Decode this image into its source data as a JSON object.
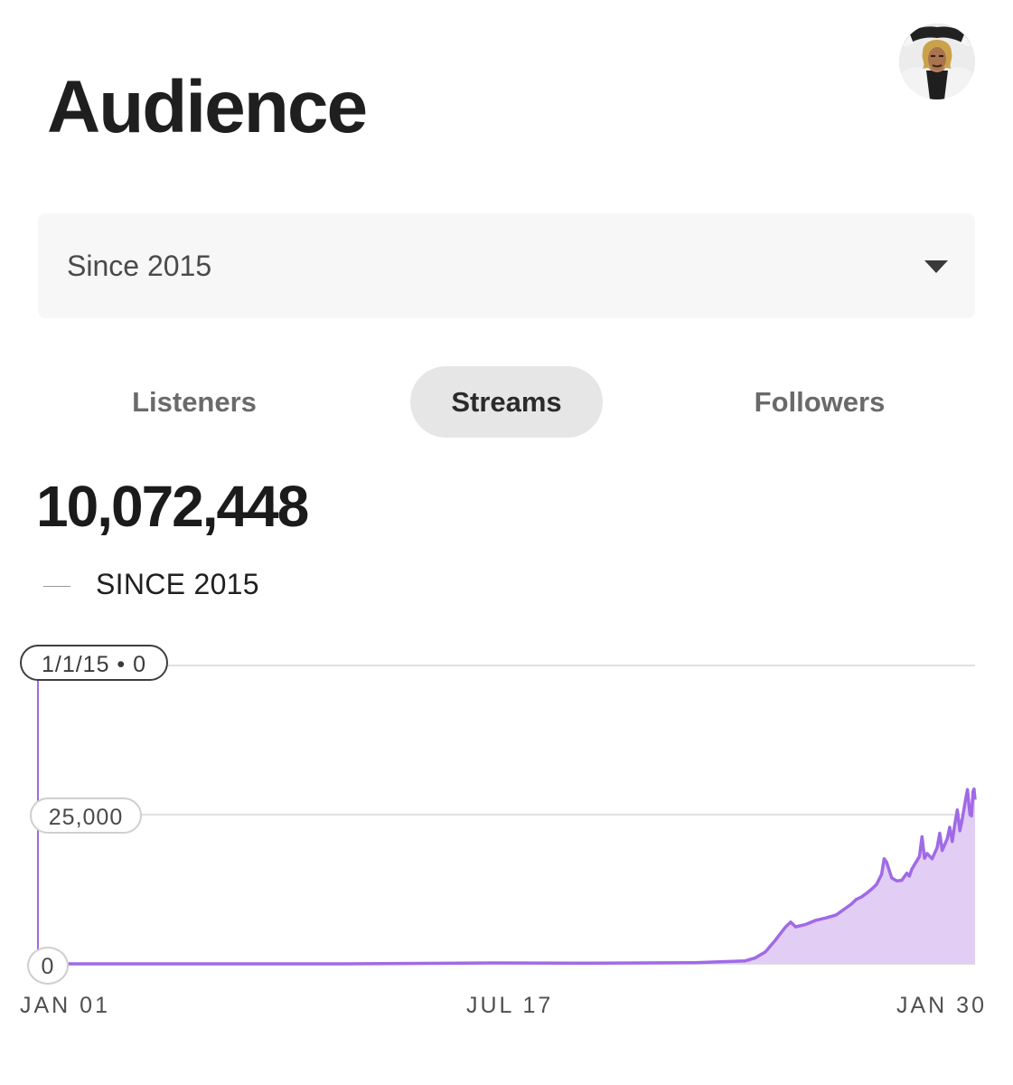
{
  "header": {
    "title": "Audience",
    "avatar_icon": "user-avatar"
  },
  "range_select": {
    "value": "Since 2015",
    "icon": "caret-down-icon"
  },
  "tabs": [
    {
      "label": "Listeners",
      "active": false
    },
    {
      "label": "Streams",
      "active": true
    },
    {
      "label": "Followers",
      "active": false
    }
  ],
  "summary": {
    "total": "10,072,448",
    "legend_label": "SINCE 2015"
  },
  "colors": {
    "accent": "#a06ae6",
    "fill": "#e2cdf5",
    "grid": "#d6d6d6"
  },
  "chart_data": {
    "type": "area",
    "tooltip": "1/1/15 • 0",
    "y_ticks": [
      "25,000",
      "0"
    ],
    "x_ticks": [
      "JAN 01",
      "JUL 17",
      "JAN 30"
    ],
    "ylim": [
      0,
      50000
    ],
    "x_range_days": [
      0,
      1855
    ],
    "grid": true,
    "series": [
      {
        "name": "Streams",
        "points": [
          [
            0,
            0
          ],
          [
            600,
            0
          ],
          [
            900,
            150
          ],
          [
            1100,
            100
          ],
          [
            1300,
            200
          ],
          [
            1400,
            500
          ],
          [
            1420,
            1000
          ],
          [
            1440,
            2000
          ],
          [
            1460,
            4000
          ],
          [
            1480,
            6200
          ],
          [
            1490,
            7000
          ],
          [
            1500,
            6200
          ],
          [
            1520,
            6600
          ],
          [
            1540,
            7300
          ],
          [
            1560,
            7700
          ],
          [
            1580,
            8200
          ],
          [
            1600,
            9400
          ],
          [
            1610,
            10000
          ],
          [
            1620,
            10800
          ],
          [
            1630,
            11200
          ],
          [
            1640,
            11800
          ],
          [
            1650,
            12500
          ],
          [
            1660,
            13300
          ],
          [
            1670,
            15000
          ],
          [
            1675,
            17600
          ],
          [
            1680,
            17000
          ],
          [
            1690,
            14400
          ],
          [
            1700,
            13900
          ],
          [
            1710,
            14000
          ],
          [
            1720,
            15200
          ],
          [
            1725,
            14700
          ],
          [
            1730,
            15900
          ],
          [
            1740,
            17300
          ],
          [
            1745,
            18000
          ],
          [
            1750,
            21300
          ],
          [
            1755,
            17700
          ],
          [
            1760,
            18500
          ],
          [
            1770,
            17600
          ],
          [
            1780,
            19500
          ],
          [
            1785,
            21900
          ],
          [
            1790,
            19000
          ],
          [
            1800,
            21000
          ],
          [
            1805,
            22900
          ],
          [
            1810,
            20500
          ],
          [
            1815,
            23400
          ],
          [
            1820,
            25800
          ],
          [
            1825,
            22300
          ],
          [
            1830,
            24400
          ],
          [
            1835,
            26900
          ],
          [
            1840,
            29200
          ],
          [
            1845,
            25000
          ],
          [
            1848,
            24800
          ],
          [
            1851,
            28900
          ],
          [
            1853,
            29300
          ],
          [
            1855,
            27500
          ]
        ]
      }
    ]
  }
}
